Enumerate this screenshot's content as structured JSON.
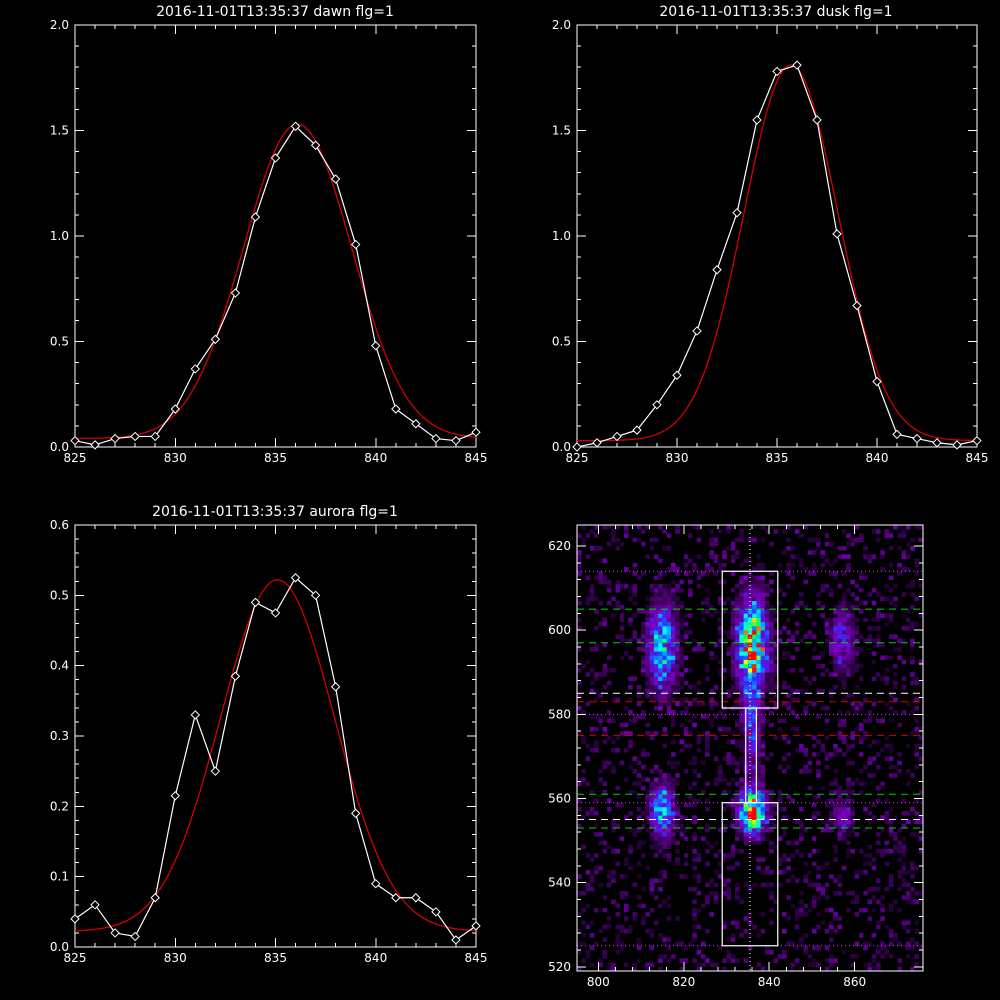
{
  "chart_data": [
    {
      "type": "line",
      "title": "2016-11-01T13:35:37 dawn flg=1",
      "xlim": [
        825,
        845
      ],
      "ylim": [
        0,
        2.0
      ],
      "xticks": [
        825,
        830,
        835,
        840,
        845
      ],
      "yticks": [
        0.0,
        0.5,
        1.0,
        1.5,
        2.0
      ],
      "ytick_labels": [
        "0.0",
        "0.5",
        "1.0",
        "1.5",
        "2.0"
      ],
      "xtick_labels": [
        "825",
        "830",
        "835",
        "840",
        "845"
      ],
      "x": [
        825,
        826,
        827,
        828,
        829,
        830,
        831,
        832,
        833,
        834,
        835,
        836,
        837,
        838,
        839,
        840,
        841,
        842,
        843,
        844,
        845
      ],
      "series": [
        {
          "style": "data",
          "color": "#ffffff",
          "values": [
            0.03,
            0.01,
            0.04,
            0.05,
            0.05,
            0.18,
            0.37,
            0.51,
            0.73,
            1.09,
            1.37,
            1.52,
            1.43,
            1.27,
            0.96,
            0.48,
            0.18,
            0.11,
            0.04,
            0.03,
            0.07
          ]
        },
        {
          "style": "fit",
          "color": "#d40000",
          "gaussian": {
            "amp": 1.49,
            "center": 836.1,
            "sigma": 2.7,
            "offset": 0.04
          }
        }
      ]
    },
    {
      "type": "line",
      "title": "2016-11-01T13:35:37 dusk flg=1",
      "xlim": [
        825,
        845
      ],
      "ylim": [
        0,
        2.0
      ],
      "xticks": [
        825,
        830,
        835,
        840,
        845
      ],
      "yticks": [
        0.0,
        0.5,
        1.0,
        1.5,
        2.0
      ],
      "ytick_labels": [
        "0.0",
        "0.5",
        "1.0",
        "1.5",
        "2.0"
      ],
      "xtick_labels": [
        "825",
        "830",
        "835",
        "840",
        "845"
      ],
      "x": [
        825,
        826,
        827,
        828,
        829,
        830,
        831,
        832,
        833,
        834,
        835,
        836,
        837,
        838,
        839,
        840,
        841,
        842,
        843,
        844,
        845
      ],
      "series": [
        {
          "style": "data",
          "color": "#ffffff",
          "values": [
            0.0,
            0.02,
            0.05,
            0.08,
            0.2,
            0.34,
            0.55,
            0.84,
            1.11,
            1.55,
            1.78,
            1.81,
            1.55,
            1.01,
            0.67,
            0.31,
            0.06,
            0.04,
            0.02,
            0.01,
            0.03
          ]
        },
        {
          "style": "fit",
          "color": "#d40000",
          "gaussian": {
            "amp": 1.78,
            "center": 835.7,
            "sigma": 2.35,
            "offset": 0.03
          }
        }
      ]
    },
    {
      "type": "line",
      "title": "2016-11-01T13:35:37 aurora flg=1",
      "xlim": [
        825,
        845
      ],
      "ylim": [
        0,
        0.6
      ],
      "xticks": [
        825,
        830,
        835,
        840,
        845
      ],
      "yticks": [
        0.0,
        0.1,
        0.2,
        0.3,
        0.4,
        0.5,
        0.6
      ],
      "ytick_labels": [
        "0.0",
        "0.1",
        "0.2",
        "0.3",
        "0.4",
        "0.5",
        "0.6"
      ],
      "xtick_labels": [
        "825",
        "830",
        "835",
        "840",
        "845"
      ],
      "x": [
        825,
        826,
        827,
        828,
        829,
        830,
        831,
        832,
        833,
        834,
        835,
        836,
        837,
        838,
        839,
        840,
        841,
        842,
        843,
        844,
        845
      ],
      "series": [
        {
          "style": "data",
          "color": "#ffffff",
          "values": [
            0.04,
            0.06,
            0.02,
            0.015,
            0.07,
            0.215,
            0.33,
            0.25,
            0.385,
            0.49,
            0.475,
            0.525,
            0.5,
            0.37,
            0.19,
            0.09,
            0.07,
            0.07,
            0.05,
            0.01,
            0.03
          ]
        },
        {
          "style": "fit",
          "color": "#d40000",
          "gaussian": {
            "amp": 0.5,
            "center": 835.1,
            "sigma": 2.85,
            "offset": 0.022
          }
        }
      ]
    },
    {
      "type": "heatmap",
      "xlim": [
        795,
        876
      ],
      "ylim": [
        519,
        625
      ],
      "xticks": [
        800,
        820,
        840,
        860
      ],
      "yticks": [
        520,
        540,
        560,
        580,
        600,
        620
      ],
      "xtick_labels": [
        "800",
        "820",
        "840",
        "860"
      ],
      "ytick_labels": [
        "520",
        "540",
        "560",
        "580",
        "600",
        "620"
      ],
      "colormap": [
        "#000000",
        "#4a0070",
        "#7a00c0",
        "#3030ff",
        "#00a0ff",
        "#00ffff",
        "#00ff60",
        "#ffff00",
        "#ff0000"
      ],
      "blobs": [
        {
          "x": 815,
          "y": 596,
          "sx": 2.2,
          "sy": 7,
          "amp": 0.55
        },
        {
          "x": 815,
          "y": 557,
          "sx": 1.8,
          "sy": 4,
          "amp": 0.55
        },
        {
          "x": 836,
          "y": 597,
          "sx": 2.3,
          "sy": 6.5,
          "amp": 0.95
        },
        {
          "x": 836,
          "y": 557,
          "sx": 2.0,
          "sy": 3.5,
          "amp": 0.95
        },
        {
          "x": 836,
          "y": 578,
          "sx": 1.4,
          "sy": 7,
          "amp": 0.35
        },
        {
          "x": 857,
          "y": 598,
          "sx": 1.8,
          "sy": 5,
          "amp": 0.3
        },
        {
          "x": 857,
          "y": 556,
          "sx": 1.8,
          "sy": 3,
          "amp": 0.22
        }
      ],
      "noise_level": 0.14,
      "hlines": [
        {
          "y": 614,
          "color": "#e040ff",
          "style": "dotted"
        },
        {
          "y": 605,
          "color": "#00d000",
          "style": "dashed"
        },
        {
          "y": 597,
          "color": "#00d000",
          "style": "dashed"
        },
        {
          "y": 585,
          "color": "#ffffff",
          "style": "dashed"
        },
        {
          "y": 583,
          "color": "#d40000",
          "style": "dashed"
        },
        {
          "y": 580,
          "color": "#e040ff",
          "style": "dotted"
        },
        {
          "y": 575,
          "color": "#d40000",
          "style": "dashed"
        },
        {
          "y": 561,
          "color": "#00d000",
          "style": "dashed"
        },
        {
          "y": 559,
          "color": "#e040ff",
          "style": "dotted"
        },
        {
          "y": 555,
          "color": "#ffffff",
          "style": "dashed"
        },
        {
          "y": 553,
          "color": "#00d000",
          "style": "dashed"
        },
        {
          "y": 525,
          "color": "#e040ff",
          "style": "dotted"
        }
      ],
      "vline": {
        "x": 835.5,
        "color": "#ffffff",
        "style": "dotted"
      },
      "boxes": [
        {
          "x0": 829,
          "x1": 842,
          "y0": 581.5,
          "y1": 614
        },
        {
          "x0": 829,
          "x1": 842,
          "y0": 525,
          "y1": 559
        },
        {
          "x0": 834.5,
          "x1": 837,
          "y0": 559,
          "y1": 581.5
        }
      ]
    }
  ]
}
